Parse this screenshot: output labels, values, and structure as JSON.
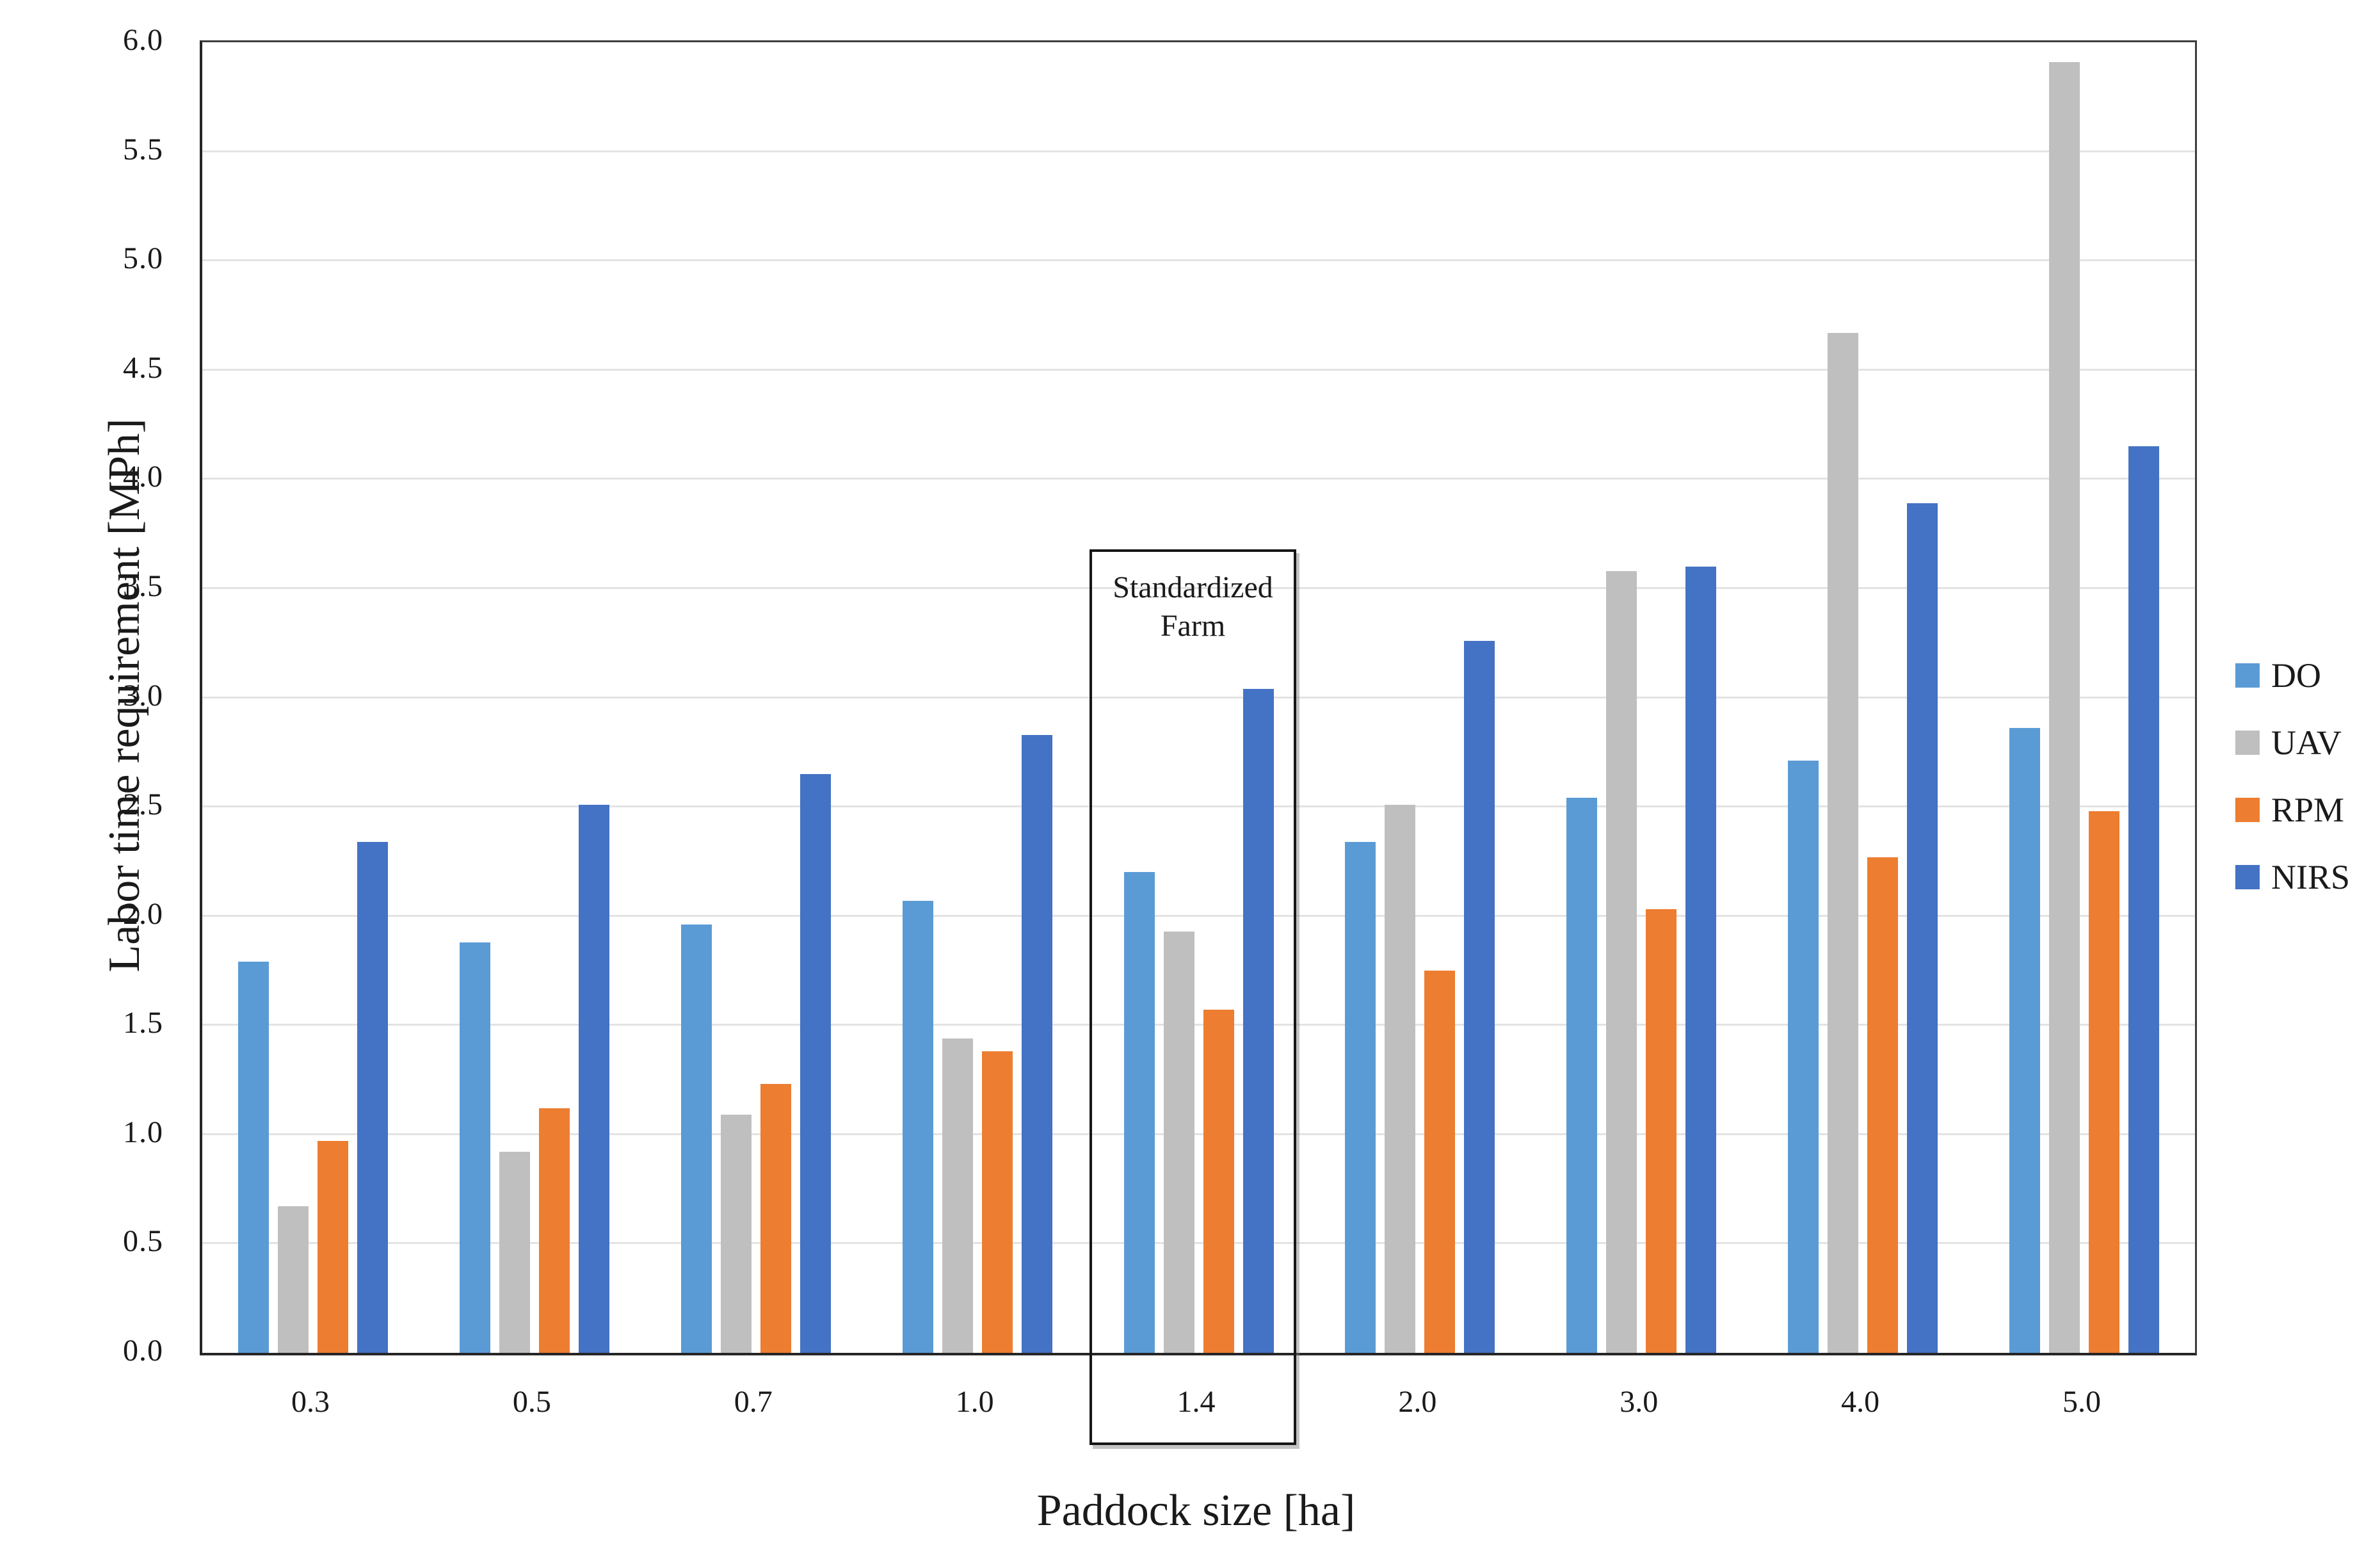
{
  "figure": {
    "y_axis_title": "Labor time requirement [MPh]",
    "x_axis_title": "Paddock size [ha]",
    "annotation": {
      "line1": "Standardized",
      "line2": "Farm",
      "attached_category": "1.4"
    }
  },
  "chart_data": {
    "type": "bar",
    "title": "",
    "xlabel": "Paddock size [ha]",
    "ylabel": "Labor time requirement [MPh]",
    "categories": [
      "0.3",
      "0.5",
      "0.7",
      "1.0",
      "1.4",
      "2.0",
      "3.0",
      "4.0",
      "5.0"
    ],
    "series": [
      {
        "name": "DO",
        "color": "#5B9BD5",
        "values": [
          1.79,
          1.88,
          1.96,
          2.07,
          2.2,
          2.34,
          2.54,
          2.71,
          2.86
        ]
      },
      {
        "name": "UAV",
        "color": "#BFBFBF",
        "values": [
          0.67,
          0.92,
          1.09,
          1.44,
          1.93,
          2.51,
          3.58,
          4.67,
          5.91
        ]
      },
      {
        "name": "RPM",
        "color": "#ED7D31",
        "values": [
          0.97,
          1.12,
          1.23,
          1.38,
          1.57,
          1.75,
          2.03,
          2.27,
          2.48
        ]
      },
      {
        "name": "NIRS",
        "color": "#4472C4",
        "values": [
          2.34,
          2.51,
          2.65,
          2.83,
          3.04,
          3.26,
          3.6,
          3.89,
          4.15
        ]
      }
    ],
    "ylim": [
      0,
      6
    ],
    "ytick_step": 0.5,
    "yticks": [
      "0.0",
      "0.5",
      "1.0",
      "1.5",
      "2.0",
      "2.5",
      "3.0",
      "3.5",
      "4.0",
      "4.5",
      "5.0",
      "5.5",
      "6.0"
    ],
    "grid": true,
    "gridline_color": "#e3e3e3",
    "legend_position": "right",
    "annotation": {
      "text": [
        "Standardized",
        "Farm"
      ],
      "category": "1.4"
    }
  }
}
